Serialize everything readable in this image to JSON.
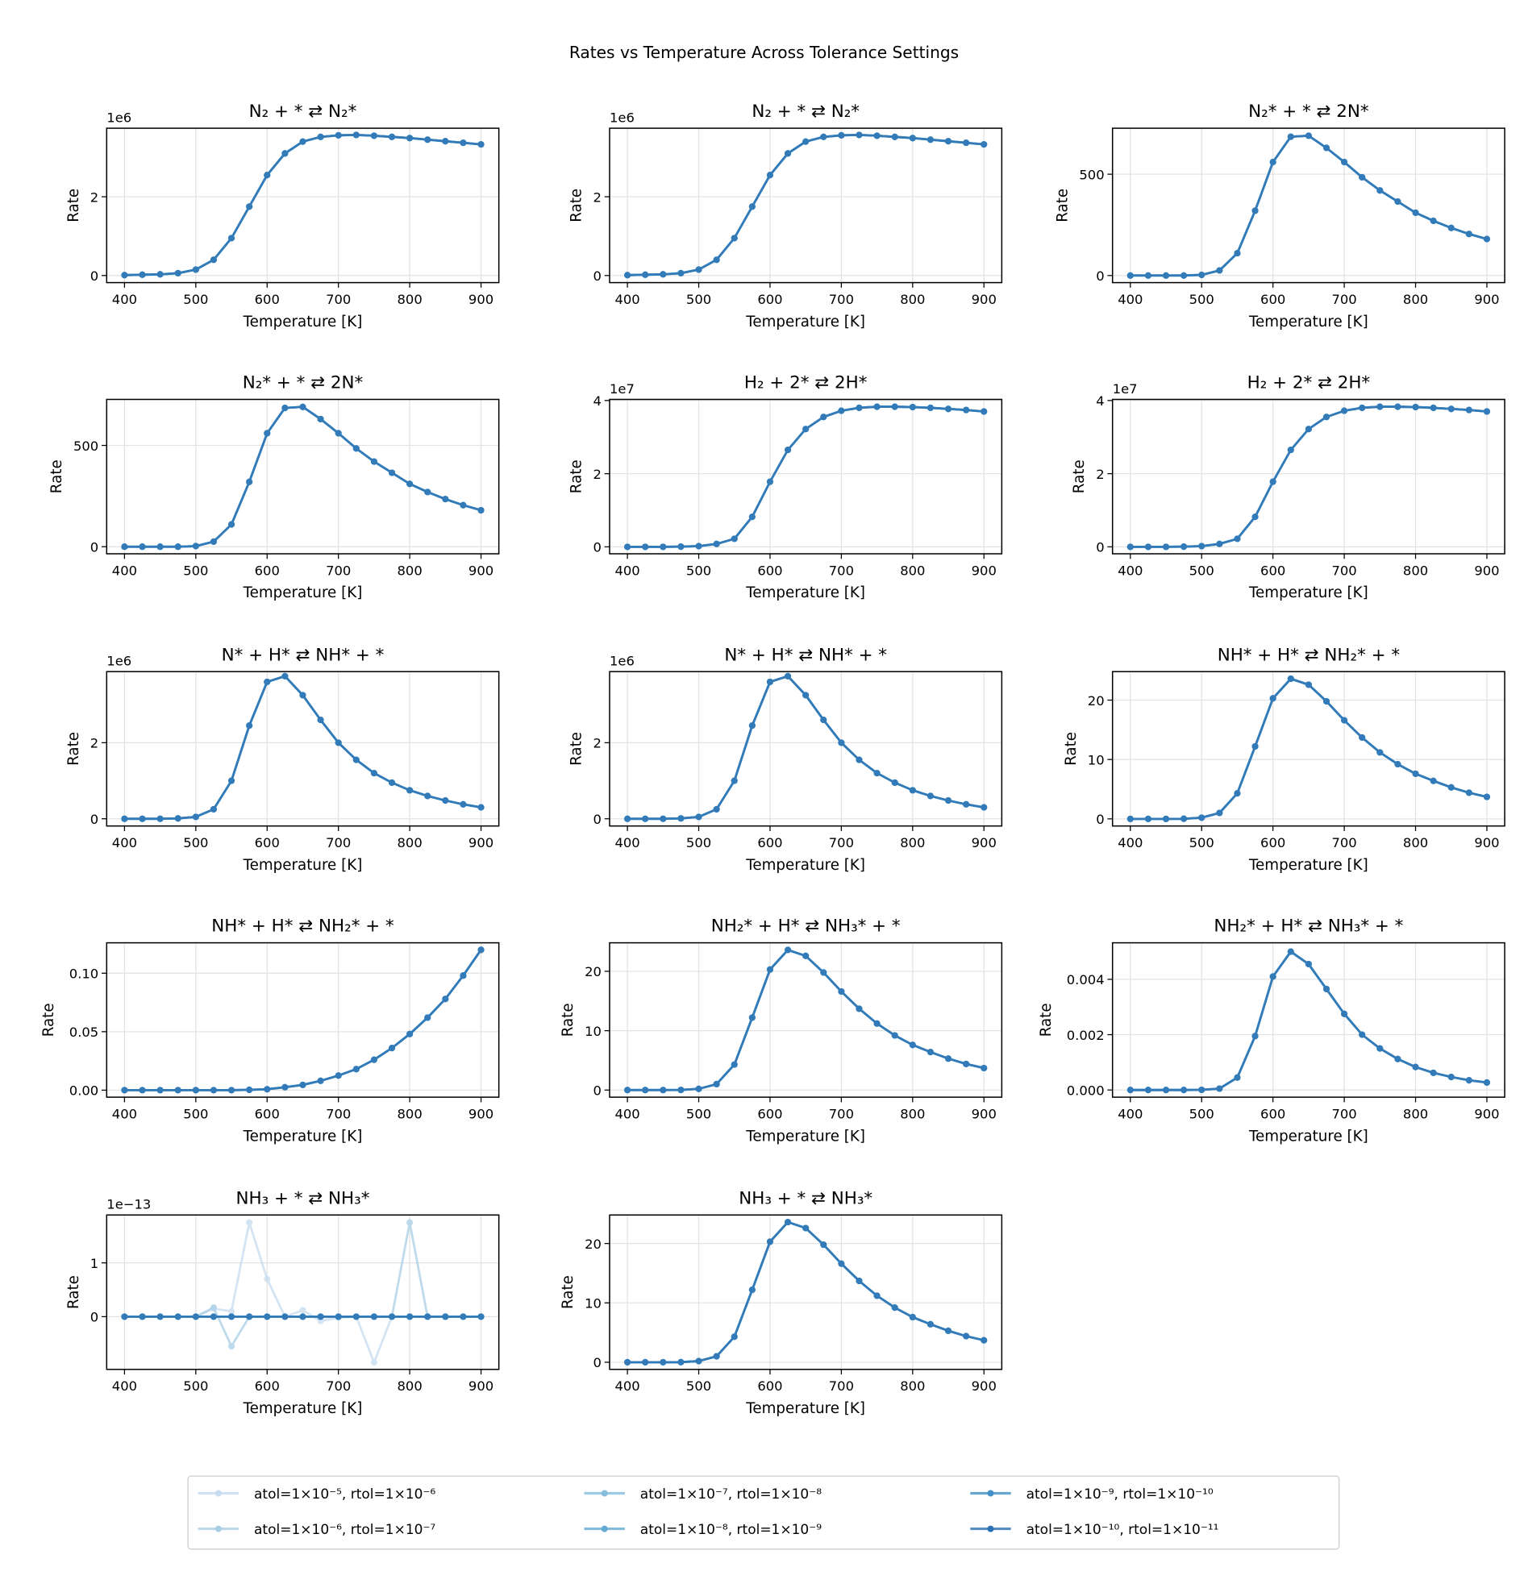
{
  "title": "Rates vs Temperature Across Tolerance Settings",
  "legend": {
    "placement": "bottom-center",
    "entries": [
      {
        "label": "atol=1×10⁻⁵, rtol=1×10⁻⁶",
        "color": "#c6dbef"
      },
      {
        "label": "atol=1×10⁻⁶, rtol=1×10⁻⁷",
        "color": "#a9cfe5"
      },
      {
        "label": "atol=1×10⁻⁷, rtol=1×10⁻⁸",
        "color": "#85bcdc"
      },
      {
        "label": "atol=1×10⁻⁸, rtol=1×10⁻⁹",
        "color": "#64a9d3"
      },
      {
        "label": "atol=1×10⁻⁹, rtol=1×10⁻¹⁰",
        "color": "#4290c5"
      },
      {
        "label": "atol=1×10⁻¹⁰, rtol=1×10⁻¹¹",
        "color": "#2a72b3"
      }
    ]
  },
  "chart_data": [
    {
      "type": "line",
      "title": "N₂ + * ⇄ N₂*",
      "xlabel": "Temperature [K]",
      "ylabel": "Rate",
      "offset_label": "1e6",
      "grid": true,
      "x": [
        400,
        425,
        450,
        475,
        500,
        525,
        550,
        575,
        600,
        625,
        650,
        675,
        700,
        725,
        750,
        775,
        800,
        825,
        850,
        875,
        900
      ],
      "xlim": [
        375,
        925
      ],
      "xticks": [
        400,
        500,
        600,
        700,
        800,
        900
      ],
      "ylim": [
        -0.18,
        3.74
      ],
      "yticks": [
        "0",
        "2"
      ],
      "ytick_values": [
        0,
        2
      ],
      "values": [
        0.01,
        0.02,
        0.03,
        0.06,
        0.15,
        0.4,
        0.95,
        1.75,
        2.55,
        3.1,
        3.4,
        3.52,
        3.56,
        3.57,
        3.55,
        3.52,
        3.49,
        3.45,
        3.41,
        3.37,
        3.33
      ]
    },
    {
      "type": "line",
      "title": "N₂ + * ⇄ N₂*",
      "xlabel": "Temperature [K]",
      "ylabel": "Rate",
      "offset_label": "1e6",
      "grid": true,
      "x": [
        400,
        425,
        450,
        475,
        500,
        525,
        550,
        575,
        600,
        625,
        650,
        675,
        700,
        725,
        750,
        775,
        800,
        825,
        850,
        875,
        900
      ],
      "xlim": [
        375,
        925
      ],
      "xticks": [
        400,
        500,
        600,
        700,
        800,
        900
      ],
      "ylim": [
        -0.18,
        3.74
      ],
      "yticks": [
        "0",
        "2"
      ],
      "ytick_values": [
        0,
        2
      ],
      "values": [
        0.01,
        0.02,
        0.03,
        0.06,
        0.15,
        0.4,
        0.95,
        1.75,
        2.55,
        3.1,
        3.4,
        3.52,
        3.56,
        3.57,
        3.55,
        3.52,
        3.49,
        3.45,
        3.41,
        3.37,
        3.33
      ]
    },
    {
      "type": "line",
      "title": "N₂* + * ⇄ 2N*",
      "xlabel": "Temperature [K]",
      "ylabel": "Rate",
      "offset_label": "",
      "grid": true,
      "x": [
        400,
        425,
        450,
        475,
        500,
        525,
        550,
        575,
        600,
        625,
        650,
        675,
        700,
        725,
        750,
        775,
        800,
        825,
        850,
        875,
        900
      ],
      "xlim": [
        375,
        925
      ],
      "xticks": [
        400,
        500,
        600,
        700,
        800,
        900
      ],
      "ylim": [
        -35,
        727
      ],
      "yticks": [
        "0",
        "500"
      ],
      "ytick_values": [
        0,
        500
      ],
      "values": [
        0,
        0,
        0,
        0,
        3,
        25,
        110,
        320,
        560,
        685,
        690,
        630,
        560,
        485,
        420,
        365,
        310,
        270,
        235,
        205,
        180
      ]
    },
    {
      "type": "line",
      "title": "N₂* + * ⇄ 2N*",
      "xlabel": "Temperature [K]",
      "ylabel": "Rate",
      "offset_label": "",
      "grid": true,
      "x": [
        400,
        425,
        450,
        475,
        500,
        525,
        550,
        575,
        600,
        625,
        650,
        675,
        700,
        725,
        750,
        775,
        800,
        825,
        850,
        875,
        900
      ],
      "xlim": [
        375,
        925
      ],
      "xticks": [
        400,
        500,
        600,
        700,
        800,
        900
      ],
      "ylim": [
        -35,
        727
      ],
      "yticks": [
        "0",
        "500"
      ],
      "ytick_values": [
        0,
        500
      ],
      "values": [
        0,
        0,
        0,
        0,
        3,
        25,
        110,
        320,
        560,
        685,
        690,
        630,
        560,
        485,
        420,
        365,
        310,
        270,
        235,
        205,
        180
      ]
    },
    {
      "type": "line",
      "title": "H₂ + 2* ⇄ 2H*",
      "xlabel": "Temperature [K]",
      "ylabel": "Rate",
      "offset_label": "1e7",
      "grid": true,
      "x": [
        400,
        425,
        450,
        475,
        500,
        525,
        550,
        575,
        600,
        625,
        650,
        675,
        700,
        725,
        750,
        775,
        800,
        825,
        850,
        875,
        900
      ],
      "xlim": [
        375,
        925
      ],
      "xticks": [
        400,
        500,
        600,
        700,
        800,
        900
      ],
      "ylim": [
        -0.19,
        4.03
      ],
      "yticks": [
        "0",
        "2",
        "4"
      ],
      "ytick_values": [
        0,
        2,
        4
      ],
      "values": [
        0,
        0,
        0,
        0.005,
        0.02,
        0.08,
        0.22,
        0.82,
        1.78,
        2.65,
        3.22,
        3.55,
        3.72,
        3.8,
        3.83,
        3.83,
        3.82,
        3.8,
        3.77,
        3.74,
        3.7
      ]
    },
    {
      "type": "line",
      "title": "H₂ + 2* ⇄ 2H*",
      "xlabel": "Temperature [K]",
      "ylabel": "Rate",
      "offset_label": "1e7",
      "grid": true,
      "x": [
        400,
        425,
        450,
        475,
        500,
        525,
        550,
        575,
        600,
        625,
        650,
        675,
        700,
        725,
        750,
        775,
        800,
        825,
        850,
        875,
        900
      ],
      "xlim": [
        375,
        925
      ],
      "xticks": [
        400,
        500,
        600,
        700,
        800,
        900
      ],
      "ylim": [
        -0.19,
        4.03
      ],
      "yticks": [
        "0",
        "2",
        "4"
      ],
      "ytick_values": [
        0,
        2,
        4
      ],
      "values": [
        0,
        0,
        0,
        0.005,
        0.02,
        0.08,
        0.22,
        0.82,
        1.78,
        2.65,
        3.22,
        3.55,
        3.72,
        3.8,
        3.83,
        3.83,
        3.82,
        3.8,
        3.77,
        3.74,
        3.7
      ]
    },
    {
      "type": "line",
      "title": "N* + H* ⇄ NH* + *",
      "xlabel": "Temperature [K]",
      "ylabel": "Rate",
      "offset_label": "1e6",
      "grid": true,
      "x": [
        400,
        425,
        450,
        475,
        500,
        525,
        550,
        575,
        600,
        625,
        650,
        675,
        700,
        725,
        750,
        775,
        800,
        825,
        850,
        875,
        900
      ],
      "xlim": [
        375,
        925
      ],
      "xticks": [
        400,
        500,
        600,
        700,
        800,
        900
      ],
      "ylim": [
        -0.19,
        3.87
      ],
      "yticks": [
        "0",
        "2"
      ],
      "ytick_values": [
        0,
        2
      ],
      "values": [
        0,
        0,
        0,
        0.01,
        0.05,
        0.25,
        1.0,
        2.45,
        3.6,
        3.75,
        3.25,
        2.6,
        2.0,
        1.55,
        1.2,
        0.95,
        0.75,
        0.6,
        0.48,
        0.38,
        0.3
      ]
    },
    {
      "type": "line",
      "title": "N* + H* ⇄ NH* + *",
      "xlabel": "Temperature [K]",
      "ylabel": "Rate",
      "offset_label": "1e6",
      "grid": true,
      "x": [
        400,
        425,
        450,
        475,
        500,
        525,
        550,
        575,
        600,
        625,
        650,
        675,
        700,
        725,
        750,
        775,
        800,
        825,
        850,
        875,
        900
      ],
      "xlim": [
        375,
        925
      ],
      "xticks": [
        400,
        500,
        600,
        700,
        800,
        900
      ],
      "ylim": [
        -0.19,
        3.87
      ],
      "yticks": [
        "0",
        "2"
      ],
      "ytick_values": [
        0,
        2
      ],
      "values": [
        0,
        0,
        0,
        0.01,
        0.05,
        0.25,
        1.0,
        2.45,
        3.6,
        3.75,
        3.25,
        2.6,
        2.0,
        1.55,
        1.2,
        0.95,
        0.75,
        0.6,
        0.48,
        0.38,
        0.3
      ]
    },
    {
      "type": "line",
      "title": "NH* + H* ⇄ NH₂* + *",
      "xlabel": "Temperature [K]",
      "ylabel": "Rate",
      "offset_label": "",
      "grid": true,
      "x": [
        400,
        425,
        450,
        475,
        500,
        525,
        550,
        575,
        600,
        625,
        650,
        675,
        700,
        725,
        750,
        775,
        800,
        825,
        850,
        875,
        900
      ],
      "xlim": [
        375,
        925
      ],
      "xticks": [
        400,
        500,
        600,
        700,
        800,
        900
      ],
      "ylim": [
        -1.2,
        24.8
      ],
      "yticks": [
        "0",
        "10",
        "20"
      ],
      "ytick_values": [
        0,
        10,
        20
      ],
      "values": [
        0,
        0,
        0,
        0.02,
        0.2,
        1.0,
        4.3,
        12.2,
        20.3,
        23.6,
        22.6,
        19.8,
        16.6,
        13.7,
        11.2,
        9.2,
        7.6,
        6.4,
        5.3,
        4.4,
        3.7
      ]
    },
    {
      "type": "line",
      "title": "NH* + H* ⇄ NH₂* + *",
      "xlabel": "Temperature [K]",
      "ylabel": "Rate",
      "offset_label": "",
      "grid": true,
      "x": [
        400,
        425,
        450,
        475,
        500,
        525,
        550,
        575,
        600,
        625,
        650,
        675,
        700,
        725,
        750,
        775,
        800,
        825,
        850,
        875,
        900
      ],
      "xlim": [
        375,
        925
      ],
      "xticks": [
        400,
        500,
        600,
        700,
        800,
        900
      ],
      "ylim": [
        -0.006,
        0.126
      ],
      "yticks": [
        "0.00",
        "0.05",
        "0.10"
      ],
      "ytick_values": [
        0,
        0.05,
        0.1
      ],
      "values": [
        0,
        0,
        0,
        0,
        0,
        0,
        0,
        0.0003,
        0.0008,
        0.0025,
        0.0045,
        0.008,
        0.0125,
        0.018,
        0.026,
        0.036,
        0.048,
        0.062,
        0.078,
        0.098,
        0.12
      ]
    },
    {
      "type": "line",
      "title": "NH₂* + H* ⇄ NH₃* + *",
      "xlabel": "Temperature [K]",
      "ylabel": "Rate",
      "offset_label": "",
      "grid": true,
      "x": [
        400,
        425,
        450,
        475,
        500,
        525,
        550,
        575,
        600,
        625,
        650,
        675,
        700,
        725,
        750,
        775,
        800,
        825,
        850,
        875,
        900
      ],
      "xlim": [
        375,
        925
      ],
      "xticks": [
        400,
        500,
        600,
        700,
        800,
        900
      ],
      "ylim": [
        -1.2,
        24.8
      ],
      "yticks": [
        "0",
        "10",
        "20"
      ],
      "ytick_values": [
        0,
        10,
        20
      ],
      "values": [
        0,
        0,
        0,
        0.02,
        0.2,
        1.0,
        4.3,
        12.2,
        20.3,
        23.6,
        22.6,
        19.8,
        16.6,
        13.7,
        11.2,
        9.2,
        7.6,
        6.4,
        5.3,
        4.4,
        3.7
      ]
    },
    {
      "type": "line",
      "title": "NH₂* + H* ⇄ NH₃* + *",
      "xlabel": "Temperature [K]",
      "ylabel": "Rate",
      "offset_label": "",
      "grid": true,
      "x": [
        400,
        425,
        450,
        475,
        500,
        525,
        550,
        575,
        600,
        625,
        650,
        675,
        700,
        725,
        750,
        775,
        800,
        825,
        850,
        875,
        900
      ],
      "xlim": [
        375,
        925
      ],
      "xticks": [
        400,
        500,
        600,
        700,
        800,
        900
      ],
      "ylim": [
        -0.00026,
        0.00532
      ],
      "yticks": [
        "0.000",
        "0.002",
        "0.004"
      ],
      "ytick_values": [
        0,
        0.002,
        0.004
      ],
      "values": [
        0,
        0,
        0,
        0,
        5e-06,
        5e-05,
        0.00045,
        0.00195,
        0.0041,
        0.005,
        0.00455,
        0.00365,
        0.00275,
        0.002,
        0.0015,
        0.00112,
        0.00083,
        0.00062,
        0.00047,
        0.00035,
        0.00027
      ]
    },
    {
      "type": "line",
      "title": "NH₃ + * ⇄ NH₃*",
      "xlabel": "Temperature [K]",
      "ylabel": "Rate",
      "offset_label": "1e−13",
      "grid": true,
      "x": [
        400,
        425,
        450,
        475,
        500,
        525,
        550,
        575,
        600,
        625,
        650,
        675,
        700,
        725,
        750,
        775,
        800,
        825,
        850,
        875,
        900
      ],
      "xlim": [
        375,
        925
      ],
      "xticks": [
        400,
        500,
        600,
        700,
        800,
        900
      ],
      "ylim": [
        -0.98,
        1.89
      ],
      "yticks": [
        "0",
        "1"
      ],
      "ytick_values": [
        0,
        1
      ],
      "series": [
        [
          0,
          0,
          0,
          0,
          0,
          0.15,
          0.1,
          1.75,
          0.7,
          0,
          0.12,
          -0.08,
          -0.02,
          0,
          -0.85,
          0,
          0,
          0,
          0,
          0,
          0
        ],
        [
          0,
          0,
          0,
          0,
          0,
          0.17,
          -0.55,
          0,
          0,
          0,
          0,
          0,
          0,
          0,
          0,
          0,
          1.75,
          0,
          0,
          0,
          0
        ],
        [
          0,
          0,
          0,
          0,
          0,
          0,
          0,
          0,
          0,
          0,
          0,
          0,
          0,
          0,
          0,
          0,
          0,
          0,
          0,
          0,
          0
        ],
        [
          0,
          0,
          0,
          0,
          0,
          0,
          0,
          0,
          0,
          0,
          0,
          0,
          0,
          0,
          0,
          0,
          0,
          0,
          0,
          0,
          0
        ],
        [
          0,
          0,
          0,
          0,
          0,
          0,
          0,
          0,
          0,
          0,
          0,
          0,
          0,
          0,
          0,
          0,
          0,
          0,
          0,
          0,
          0
        ],
        [
          0,
          0,
          0,
          0,
          0,
          0,
          0,
          0,
          0,
          0,
          0,
          0,
          0,
          0,
          0,
          0,
          0,
          0,
          0,
          0,
          0
        ]
      ]
    },
    {
      "type": "line",
      "title": "NH₃ + * ⇄ NH₃*",
      "xlabel": "Temperature [K]",
      "ylabel": "Rate",
      "offset_label": "",
      "grid": true,
      "x": [
        400,
        425,
        450,
        475,
        500,
        525,
        550,
        575,
        600,
        625,
        650,
        675,
        700,
        725,
        750,
        775,
        800,
        825,
        850,
        875,
        900
      ],
      "xlim": [
        375,
        925
      ],
      "xticks": [
        400,
        500,
        600,
        700,
        800,
        900
      ],
      "ylim": [
        -1.2,
        24.8
      ],
      "yticks": [
        "0",
        "10",
        "20"
      ],
      "ytick_values": [
        0,
        10,
        20
      ],
      "values": [
        0,
        0,
        0,
        0.02,
        0.2,
        1.0,
        4.3,
        12.2,
        20.3,
        23.6,
        22.6,
        19.8,
        16.6,
        13.7,
        11.2,
        9.2,
        7.6,
        6.4,
        5.3,
        4.4,
        3.7
      ]
    }
  ]
}
